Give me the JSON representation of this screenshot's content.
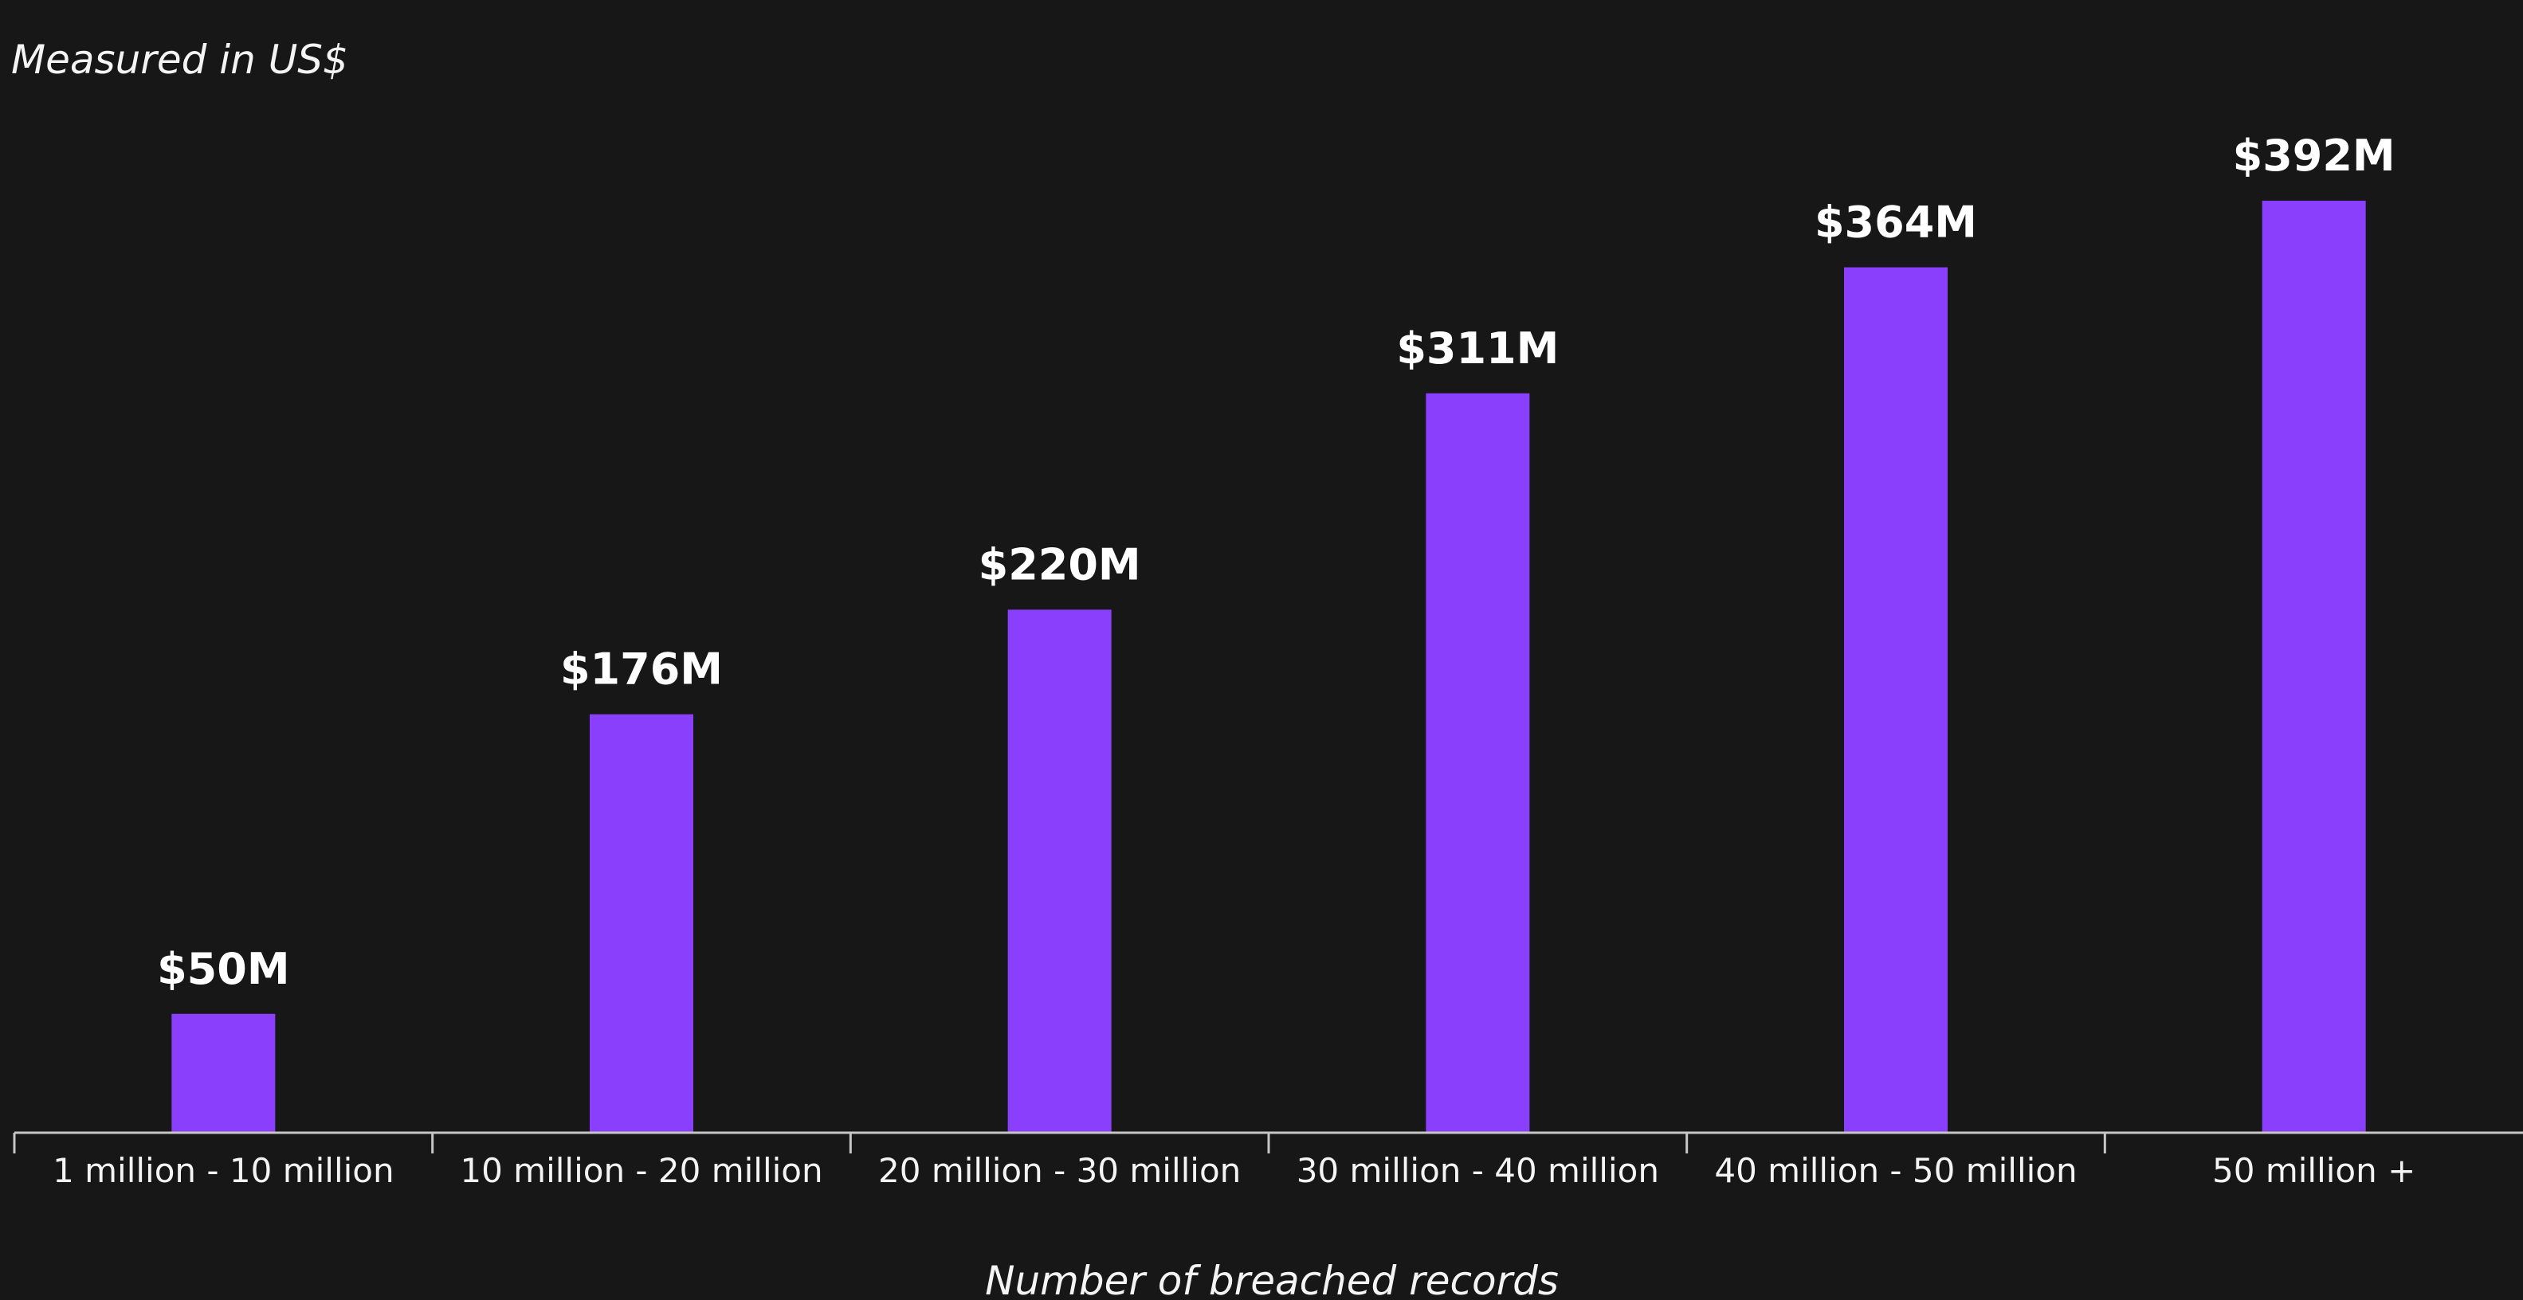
{
  "chart_data": {
    "type": "bar",
    "title": "",
    "units_note": "Measured in US$",
    "xlabel": "Number of breached records",
    "ylabel": "",
    "categories": [
      "1 million - 10 million",
      "10 million - 20 million",
      "20 million - 30 million",
      "30 million - 40 million",
      "40 million - 50 million",
      "50 million +"
    ],
    "values": [
      50,
      176,
      220,
      311,
      364,
      392
    ],
    "value_labels": [
      "$50M",
      "$176M",
      "$220M",
      "$311M",
      "$364M",
      "$392M"
    ],
    "ylim": [
      0,
      392
    ],
    "grid": false,
    "legend": "none",
    "colors": {
      "bar": "#8a3ffc",
      "background": "#171717",
      "text": "#f4f4f4",
      "axis": "#c6c6c6"
    }
  }
}
